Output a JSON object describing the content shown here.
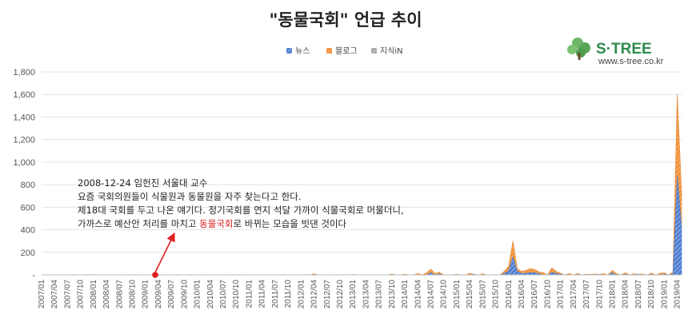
{
  "brand": {
    "name": "S·TREE",
    "url": "www.s-tree.co.kr"
  },
  "annotation": {
    "line1": "2008-12-24 임헌진 서울대 교수",
    "line2": "요즘 국회의원들이 식물원과 동물원을 자주 찾는다고 한다.",
    "line3": "제18대 국회를 두고 나온 얘기다. 정기국회를 연지 석달 가까이 식물국회로 머물더니,",
    "line4_before": "가까스로 예산안 처리를 마치고 ",
    "line4_highlight": "동물국회",
    "line4_after": "로 바뀌는 모습을 빗댄 것이다",
    "highlight_color": "#e02020",
    "marker_color": "#e02020",
    "marker_month": "2008/12"
  },
  "chart_data": {
    "type": "area",
    "stacked": true,
    "title": "\"동물국회\" 언급 추이",
    "xlabel": "",
    "ylabel": "",
    "ylim": [
      0,
      1800
    ],
    "yticks": [
      "-",
      "200",
      "400",
      "600",
      "800",
      "1,000",
      "1,200",
      "1,400",
      "1,600",
      "1,800"
    ],
    "xtick_labels": [
      "2007/01",
      "2007/04",
      "2007/07",
      "2007/10",
      "2008/01",
      "2008/04",
      "2008/07",
      "2008/10",
      "2009/01",
      "2009/04",
      "2009/07",
      "2009/10",
      "2010/01",
      "2010/04",
      "2010/07",
      "2010/10",
      "2011/01",
      "2011/04",
      "2011/07",
      "2011/10",
      "2012/01",
      "2012/04",
      "2012/07",
      "2012/10",
      "2013/01",
      "2013/04",
      "2013/07",
      "2013/10",
      "2014/01",
      "2014/04",
      "2014/07",
      "2014/10",
      "2015/01",
      "2015/04",
      "2015/07",
      "2015/10",
      "2016/01",
      "2016/04",
      "2016/07",
      "2016/10",
      "2017/01",
      "2017/04",
      "2017/07",
      "2017/10",
      "2018/01",
      "2018/04",
      "2018/07",
      "2018/10",
      "2019/01",
      "2019/04"
    ],
    "x_start": "2007/01",
    "x_end": "2019/05",
    "grid": true,
    "legend_position": "top",
    "series": [
      {
        "name": "뉴스",
        "color": "#4f7fd0",
        "points": [
          [
            "2012/04",
            3
          ],
          [
            "2014/07",
            20
          ],
          [
            "2014/09",
            8
          ],
          [
            "2015/05",
            5
          ],
          [
            "2015/12",
            12
          ],
          [
            "2016/01",
            35
          ],
          [
            "2016/02",
            160
          ],
          [
            "2016/03",
            30
          ],
          [
            "2016/04",
            12
          ],
          [
            "2016/05",
            15
          ],
          [
            "2016/06",
            20
          ],
          [
            "2016/07",
            18
          ],
          [
            "2016/08",
            12
          ],
          [
            "2016/11",
            22
          ],
          [
            "2016/12",
            12
          ],
          [
            "2017/01",
            5
          ],
          [
            "2017/05",
            4
          ],
          [
            "2017/08",
            4
          ],
          [
            "2017/10",
            4
          ],
          [
            "2018/01",
            18
          ],
          [
            "2018/04",
            6
          ],
          [
            "2018/07",
            5
          ],
          [
            "2018/10",
            5
          ],
          [
            "2019/01",
            6
          ],
          [
            "2019/03",
            10
          ],
          [
            "2019/04",
            880
          ],
          [
            "2019/05",
            420
          ]
        ]
      },
      {
        "name": "블로그",
        "color": "#f0923b",
        "points": [
          [
            "2008/01",
            2
          ],
          [
            "2009/04",
            3
          ],
          [
            "2012/04",
            6
          ],
          [
            "2013/01",
            3
          ],
          [
            "2013/10",
            8
          ],
          [
            "2014/01",
            6
          ],
          [
            "2014/04",
            12
          ],
          [
            "2014/06",
            18
          ],
          [
            "2014/07",
            30
          ],
          [
            "2014/08",
            12
          ],
          [
            "2014/09",
            15
          ],
          [
            "2015/01",
            6
          ],
          [
            "2015/04",
            14
          ],
          [
            "2015/07",
            10
          ],
          [
            "2015/12",
            20
          ],
          [
            "2016/01",
            40
          ],
          [
            "2016/02",
            140
          ],
          [
            "2016/03",
            25
          ],
          [
            "2016/04",
            20
          ],
          [
            "2016/05",
            25
          ],
          [
            "2016/06",
            35
          ],
          [
            "2016/07",
            30
          ],
          [
            "2016/08",
            15
          ],
          [
            "2016/09",
            20
          ],
          [
            "2016/11",
            40
          ],
          [
            "2016/12",
            18
          ],
          [
            "2017/01",
            10
          ],
          [
            "2017/03",
            12
          ],
          [
            "2017/05",
            8
          ],
          [
            "2017/07",
            6
          ],
          [
            "2017/09",
            8
          ],
          [
            "2017/11",
            10
          ],
          [
            "2018/01",
            22
          ],
          [
            "2018/02",
            10
          ],
          [
            "2018/04",
            12
          ],
          [
            "2018/06",
            10
          ],
          [
            "2018/08",
            8
          ],
          [
            "2018/10",
            10
          ],
          [
            "2018/12",
            14
          ],
          [
            "2019/01",
            12
          ],
          [
            "2019/03",
            15
          ],
          [
            "2019/04",
            720
          ],
          [
            "2019/05",
            300
          ]
        ]
      },
      {
        "name": "지식iN",
        "color": "#a8a8a8",
        "points": [
          [
            "2016/02",
            2
          ],
          [
            "2019/04",
            6
          ]
        ]
      }
    ]
  }
}
